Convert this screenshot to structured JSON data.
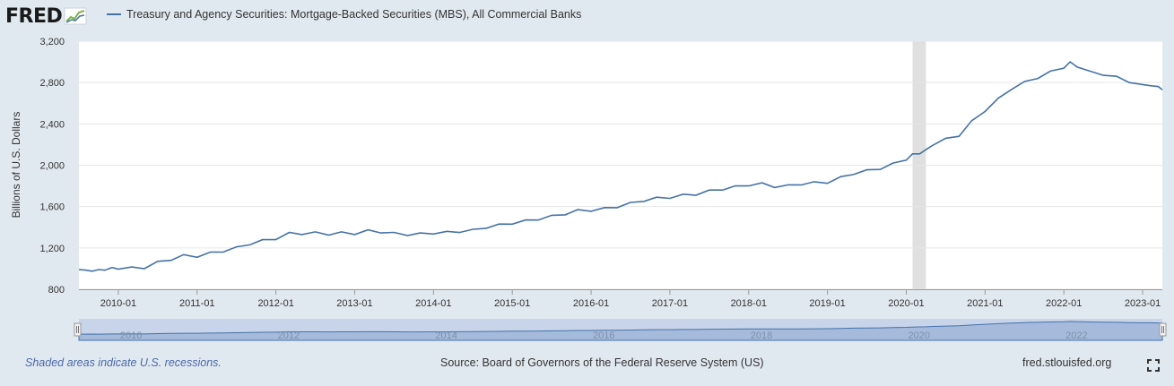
{
  "brand": {
    "logo_text": "FRED"
  },
  "colors": {
    "series": "#4572a7",
    "recession": "#e0e0e0",
    "navigator_fill": "#c4d1ea"
  },
  "chart_data": {
    "type": "line",
    "title": "Treasury and Agency Securities: Mortgage-Backed Securities (MBS), All Commercial Banks",
    "ylabel": "Billions of U.S. Dollars",
    "xlabel": "",
    "x_range": [
      2009.5,
      2023.25
    ],
    "ylim": [
      800,
      3200
    ],
    "yticks": [
      "800",
      "1,200",
      "1,600",
      "2,000",
      "2,400",
      "2,800",
      "3,200"
    ],
    "ytick_values": [
      800,
      1200,
      1600,
      2000,
      2400,
      2800,
      3200
    ],
    "xticks": [
      {
        "t": 2010,
        "label": "2010-01"
      },
      {
        "t": 2011,
        "label": "2011-01"
      },
      {
        "t": 2012,
        "label": "2012-01"
      },
      {
        "t": 2013,
        "label": "2013-01"
      },
      {
        "t": 2014,
        "label": "2014-01"
      },
      {
        "t": 2015,
        "label": "2015-01"
      },
      {
        "t": 2016,
        "label": "2016-01"
      },
      {
        "t": 2017,
        "label": "2017-01"
      },
      {
        "t": 2018,
        "label": "2018-01"
      },
      {
        "t": 2019,
        "label": "2019-01"
      },
      {
        "t": 2020,
        "label": "2020-01"
      },
      {
        "t": 2021,
        "label": "2021-01"
      },
      {
        "t": 2022,
        "label": "2022-01"
      },
      {
        "t": 2023,
        "label": "2023-01"
      }
    ],
    "recessions": [
      {
        "start": 2020.08,
        "end": 2020.25
      }
    ],
    "grid": true,
    "legend": "top-left",
    "series": [
      {
        "name": "Treasury and Agency Securities: Mortgage-Backed Securities (MBS), All Commercial Banks",
        "x": [
          2009.5,
          2009.58,
          2009.67,
          2009.75,
          2009.83,
          2009.92,
          2010.0,
          2010.17,
          2010.33,
          2010.5,
          2010.67,
          2010.83,
          2011.0,
          2011.17,
          2011.33,
          2011.5,
          2011.67,
          2011.83,
          2012.0,
          2012.17,
          2012.33,
          2012.5,
          2012.67,
          2012.83,
          2013.0,
          2013.17,
          2013.33,
          2013.5,
          2013.67,
          2013.83,
          2014.0,
          2014.17,
          2014.33,
          2014.5,
          2014.67,
          2014.83,
          2015.0,
          2015.17,
          2015.33,
          2015.5,
          2015.67,
          2015.83,
          2016.0,
          2016.17,
          2016.33,
          2016.5,
          2016.67,
          2016.83,
          2017.0,
          2017.17,
          2017.33,
          2017.5,
          2017.67,
          2017.83,
          2018.0,
          2018.17,
          2018.33,
          2018.5,
          2018.67,
          2018.83,
          2019.0,
          2019.17,
          2019.33,
          2019.5,
          2019.67,
          2019.83,
          2020.0,
          2020.08,
          2020.17,
          2020.25,
          2020.33,
          2020.5,
          2020.67,
          2020.83,
          2021.0,
          2021.17,
          2021.33,
          2021.5,
          2021.67,
          2021.83,
          2022.0,
          2022.08,
          2022.17,
          2022.33,
          2022.5,
          2022.67,
          2022.83,
          2023.0,
          2023.1,
          2023.2,
          2023.25
        ],
        "values": [
          990,
          975,
          985,
          980,
          995,
          1000,
          1005,
          1005,
          1010,
          1060,
          1090,
          1125,
          1120,
          1150,
          1170,
          1200,
          1240,
          1270,
          1290,
          1340,
          1340,
          1345,
          1335,
          1345,
          1340,
          1365,
          1355,
          1340,
          1330,
          1335,
          1345,
          1350,
          1360,
          1370,
          1400,
          1420,
          1440,
          1460,
          1480,
          1505,
          1530,
          1560,
          1565,
          1580,
          1600,
          1630,
          1660,
          1680,
          1690,
          1710,
          1720,
          1750,
          1770,
          1790,
          1810,
          1820,
          1795,
          1800,
          1820,
          1830,
          1835,
          1880,
          1920,
          1945,
          1970,
          2010,
          2060,
          2100,
          2120,
          2140,
          2200,
          2250,
          2290,
          2420,
          2530,
          2640,
          2740,
          2800,
          2850,
          2900,
          2950,
          2990,
          2960,
          2900,
          2880,
          2850,
          2810,
          2770,
          2780,
          2750,
          2730
        ]
      }
    ]
  },
  "navigator": {
    "labels": [
      {
        "t": 2010,
        "label": "2010"
      },
      {
        "t": 2012,
        "label": "2012"
      },
      {
        "t": 2014,
        "label": "2014"
      },
      {
        "t": 2016,
        "label": "2016"
      },
      {
        "t": 2018,
        "label": "2018"
      },
      {
        "t": 2020,
        "label": "2020"
      },
      {
        "t": 2022,
        "label": "2022"
      }
    ]
  },
  "footer": {
    "note": "Shaded areas indicate U.S. recessions.",
    "source": "Source: Board of Governors of the Federal Reserve System (US)",
    "site": "fred.stlouisfed.org"
  },
  "icons": {
    "logo_graph": "chart-graph-icon",
    "fullscreen": "fullscreen-icon"
  }
}
